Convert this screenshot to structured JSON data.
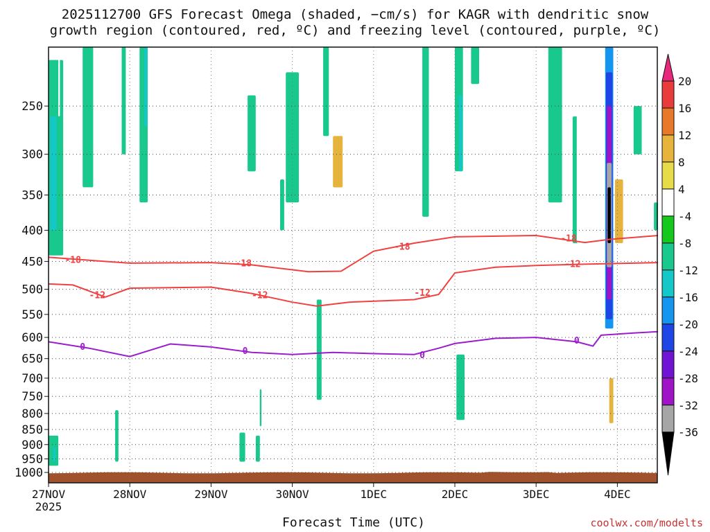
{
  "title_line1": "2025112700 GFS Forecast Omega (shaded, −cm/s) for KAGR with dendritic snow",
  "title_line2": "growth region (contoured, red, ºC) and freezing level (contoured, purple, ºC)",
  "credit": "coolwx.com/modelts",
  "chart_data": {
    "type": "heatmap",
    "title": "2025112700 GFS Forecast Omega (shaded, −cm/s) for KAGR with dendritic snow growth region (contoured, red, ºC) and freezing level (contoured, purple, ºC)",
    "xlabel": "Forecast Time (UTC)",
    "ylabel": "",
    "y_scale": "log-pressure (hPa)",
    "ylim": [
      1000,
      200
    ],
    "xlim_days": [
      "27NOV 00Z",
      "4DEC 12Z"
    ],
    "x_ticks": [
      {
        "label": "27NOV",
        "sub": "2025",
        "day": 0
      },
      {
        "label": "28NOV",
        "day": 1
      },
      {
        "label": "29NOV",
        "day": 2
      },
      {
        "label": "30NOV",
        "day": 3
      },
      {
        "label": "1DEC",
        "day": 4
      },
      {
        "label": "2DEC",
        "day": 5
      },
      {
        "label": "3DEC",
        "day": 6
      },
      {
        "label": "4DEC",
        "day": 7
      }
    ],
    "y_ticks": [
      250,
      300,
      350,
      400,
      450,
      500,
      550,
      600,
      650,
      700,
      750,
      800,
      850,
      900,
      950,
      1000
    ],
    "grid": true,
    "colorbar": {
      "labels": [
        "20",
        "16",
        "12",
        "8",
        "4",
        "-4",
        "-8",
        "-12",
        "-16",
        "-20",
        "-24",
        "-28",
        "-32",
        "-36"
      ],
      "colors": [
        "#e8287a",
        "#e83c3c",
        "#e8782a",
        "#e6b43c",
        "#e6dc4a",
        "#ffffff",
        "#16c81c",
        "#18c88c",
        "#14c8c8",
        "#1496f0",
        "#1e46e6",
        "#6e14d2",
        "#a014c8",
        "#a6a6a6",
        "#000000"
      ]
    },
    "contours": {
      "snow_growth": {
        "color": "#f04040",
        "levels": [
          {
            "level": "-18",
            "points": [
              [
                0.0,
                443
              ],
              [
                0.5,
                448
              ],
              [
                1.0,
                453
              ],
              [
                2.0,
                452
              ],
              [
                2.5,
                456
              ],
              [
                3.2,
                468
              ],
              [
                3.6,
                467
              ],
              [
                4.0,
                433
              ],
              [
                4.5,
                420
              ],
              [
                5.0,
                410
              ],
              [
                6.0,
                408
              ],
              [
                6.6,
                419
              ],
              [
                6.9,
                414
              ],
              [
                7.5,
                408
              ]
            ]
          },
          {
            "level": "-12",
            "points": [
              [
                0.0,
                490
              ],
              [
                0.3,
                492
              ],
              [
                0.7,
                515
              ],
              [
                1.0,
                498
              ],
              [
                2.0,
                496
              ],
              [
                2.5,
                508
              ],
              [
                3.0,
                525
              ],
              [
                3.3,
                533
              ],
              [
                3.7,
                525
              ],
              [
                4.5,
                520
              ],
              [
                4.8,
                510
              ],
              [
                5.0,
                470
              ],
              [
                5.5,
                460
              ],
              [
                6.0,
                457
              ],
              [
                6.5,
                455
              ],
              [
                7.5,
                452
              ]
            ]
          }
        ]
      },
      "freezing_level": {
        "color": "#9a1ccc",
        "levels": [
          {
            "level": "0",
            "points": [
              [
                0.0,
                610
              ],
              [
                0.5,
                625
              ],
              [
                1.0,
                645
              ],
              [
                1.5,
                615
              ],
              [
                2.0,
                622
              ],
              [
                2.5,
                635
              ],
              [
                3.0,
                640
              ],
              [
                3.5,
                635
              ],
              [
                4.0,
                638
              ],
              [
                4.5,
                640
              ],
              [
                4.8,
                625
              ],
              [
                5.0,
                614
              ],
              [
                5.5,
                602
              ],
              [
                6.0,
                600
              ],
              [
                6.5,
                610
              ],
              [
                6.7,
                620
              ],
              [
                6.8,
                595
              ],
              [
                7.2,
                590
              ],
              [
                7.5,
                587
              ]
            ]
          }
        ]
      }
    },
    "omega_features": [
      {
        "day_start": 0.0,
        "day_end": 0.18,
        "p_top": 210,
        "p_bottom": 440,
        "value": -8
      },
      {
        "day_start": 0.02,
        "day_end": 0.1,
        "p_top": 260,
        "p_bottom": 400,
        "value": -12
      },
      {
        "day_start": 0.0,
        "day_end": 0.12,
        "p_top": 870,
        "p_bottom": 975,
        "value": -8
      },
      {
        "day_start": 0.06,
        "day_end": 0.09,
        "p_top": 910,
        "p_bottom": 960,
        "value": -12
      },
      {
        "day_start": 0.12,
        "day_end": 0.14,
        "p_top": 200,
        "p_bottom": 260,
        "value": 4
      },
      {
        "day_start": 0.42,
        "day_end": 0.55,
        "p_top": 200,
        "p_bottom": 340,
        "value": -8
      },
      {
        "day_start": 0.85,
        "day_end": 0.9,
        "p_top": 480,
        "p_bottom": 640,
        "value": 4
      },
      {
        "day_start": 0.92,
        "day_end": 0.96,
        "p_top": 400,
        "p_bottom": 640,
        "value": 4
      },
      {
        "day_start": 0.82,
        "day_end": 0.86,
        "p_top": 790,
        "p_bottom": 960,
        "value": -8
      },
      {
        "day_start": 0.55,
        "day_end": 0.65,
        "p_top": 200,
        "p_bottom": 380,
        "value": 4
      },
      {
        "day_start": 0.9,
        "day_end": 0.95,
        "p_top": 200,
        "p_bottom": 300,
        "value": -8
      },
      {
        "day_start": 1.12,
        "day_end": 1.22,
        "p_top": 200,
        "p_bottom": 360,
        "value": -8
      },
      {
        "day_start": 1.18,
        "day_end": 1.22,
        "p_top": 200,
        "p_bottom": 270,
        "value": -12
      },
      {
        "day_start": 1.3,
        "day_end": 1.5,
        "p_top": 200,
        "p_bottom": 300,
        "value": 4
      },
      {
        "day_start": 1.72,
        "day_end": 1.76,
        "p_top": 420,
        "p_bottom": 560,
        "value": 4
      },
      {
        "day_start": 2.45,
        "day_end": 2.55,
        "p_top": 240,
        "p_bottom": 320,
        "value": -8
      },
      {
        "day_start": 2.65,
        "day_end": 2.78,
        "p_top": 200,
        "p_bottom": 330,
        "value": 4
      },
      {
        "day_start": 2.92,
        "day_end": 3.08,
        "p_top": 220,
        "p_bottom": 360,
        "value": -8
      },
      {
        "day_start": 2.85,
        "day_end": 2.9,
        "p_top": 330,
        "p_bottom": 400,
        "value": -8
      },
      {
        "day_start": 2.35,
        "day_end": 2.42,
        "p_top": 860,
        "p_bottom": 960,
        "value": -8
      },
      {
        "day_start": 2.45,
        "day_end": 2.5,
        "p_top": 740,
        "p_bottom": 880,
        "value": 4
      },
      {
        "day_start": 2.6,
        "day_end": 2.62,
        "p_top": 730,
        "p_bottom": 840,
        "value": -8
      },
      {
        "day_start": 2.55,
        "day_end": 2.6,
        "p_top": 870,
        "p_bottom": 960,
        "value": -8
      },
      {
        "day_start": 3.2,
        "day_end": 3.28,
        "p_top": 400,
        "p_bottom": 460,
        "value": 4
      },
      {
        "day_start": 3.45,
        "day_end": 3.62,
        "p_top": 200,
        "p_bottom": 470,
        "value": 4
      },
      {
        "day_start": 3.5,
        "day_end": 3.62,
        "p_top": 280,
        "p_bottom": 340,
        "value": 12
      },
      {
        "day_start": 3.5,
        "day_end": 3.6,
        "p_top": 400,
        "p_bottom": 560,
        "value": 4
      },
      {
        "day_start": 3.62,
        "day_end": 3.78,
        "p_top": 200,
        "p_bottom": 340,
        "value": 4
      },
      {
        "day_start": 3.38,
        "day_end": 3.45,
        "p_top": 200,
        "p_bottom": 280,
        "value": -8
      },
      {
        "day_start": 3.3,
        "day_end": 3.36,
        "p_top": 520,
        "p_bottom": 760,
        "value": -8
      },
      {
        "day_start": 3.9,
        "day_end": 4.0,
        "p_top": 200,
        "p_bottom": 360,
        "value": 4
      },
      {
        "day_start": 4.05,
        "day_end": 4.15,
        "p_top": 200,
        "p_bottom": 260,
        "value": 4
      },
      {
        "day_start": 4.25,
        "day_end": 4.4,
        "p_top": 200,
        "p_bottom": 280,
        "value": 4
      },
      {
        "day_start": 4.55,
        "day_end": 4.65,
        "p_top": 200,
        "p_bottom": 330,
        "value": 4
      },
      {
        "day_start": 4.6,
        "day_end": 4.68,
        "p_top": 200,
        "p_bottom": 380,
        "value": -8
      },
      {
        "day_start": 4.75,
        "day_end": 4.8,
        "p_top": 200,
        "p_bottom": 260,
        "value": 4
      },
      {
        "day_start": 4.57,
        "day_end": 4.62,
        "p_top": 700,
        "p_bottom": 860,
        "value": 4
      },
      {
        "day_start": 4.95,
        "day_end": 5.08,
        "p_top": 200,
        "p_bottom": 360,
        "value": 4
      },
      {
        "day_start": 5.0,
        "day_end": 5.1,
        "p_top": 200,
        "p_bottom": 320,
        "value": -8
      },
      {
        "day_start": 5.05,
        "day_end": 5.09,
        "p_top": 240,
        "p_bottom": 320,
        "value": -12
      },
      {
        "day_start": 5.02,
        "day_end": 5.12,
        "p_top": 640,
        "p_bottom": 820,
        "value": -8
      },
      {
        "day_start": 5.15,
        "day_end": 5.25,
        "p_top": 200,
        "p_bottom": 300,
        "value": 4
      },
      {
        "day_start": 5.2,
        "day_end": 5.3,
        "p_top": 200,
        "p_bottom": 230,
        "value": -8
      },
      {
        "day_start": 5.3,
        "day_end": 5.35,
        "p_top": 200,
        "p_bottom": 250,
        "value": 4
      },
      {
        "day_start": 5.6,
        "day_end": 5.66,
        "p_top": 200,
        "p_bottom": 270,
        "value": 4
      },
      {
        "day_start": 5.7,
        "day_end": 5.78,
        "p_top": 200,
        "p_bottom": 320,
        "value": 4
      },
      {
        "day_start": 5.9,
        "day_end": 6.0,
        "p_top": 200,
        "p_bottom": 330,
        "value": 4
      },
      {
        "day_start": 6.15,
        "day_end": 6.32,
        "p_top": 200,
        "p_bottom": 360,
        "value": -8
      },
      {
        "day_start": 6.32,
        "day_end": 6.5,
        "p_top": 200,
        "p_bottom": 380,
        "value": 4
      },
      {
        "day_start": 6.45,
        "day_end": 6.55,
        "p_top": 260,
        "p_bottom": 420,
        "value": -8
      },
      {
        "day_start": 6.5,
        "day_end": 6.6,
        "p_top": 200,
        "p_bottom": 420,
        "value": 4
      },
      {
        "day_start": 6.85,
        "day_end": 6.95,
        "p_top": 200,
        "p_bottom": 580,
        "value": -16
      },
      {
        "day_start": 6.86,
        "day_end": 6.94,
        "p_top": 220,
        "p_bottom": 560,
        "value": -20
      },
      {
        "day_start": 6.87,
        "day_end": 6.93,
        "p_top": 250,
        "p_bottom": 520,
        "value": -28
      },
      {
        "day_start": 6.87,
        "day_end": 6.93,
        "p_top": 310,
        "p_bottom": 460,
        "value": -32
      },
      {
        "day_start": 6.88,
        "day_end": 6.92,
        "p_top": 340,
        "p_bottom": 420,
        "value": -36
      },
      {
        "day_start": 6.95,
        "day_end": 7.1,
        "p_top": 200,
        "p_bottom": 530,
        "value": 4
      },
      {
        "day_start": 6.97,
        "day_end": 7.07,
        "p_top": 330,
        "p_bottom": 420,
        "value": 12
      },
      {
        "day_start": 7.1,
        "day_end": 7.25,
        "p_top": 200,
        "p_bottom": 280,
        "value": 4
      },
      {
        "day_start": 7.2,
        "day_end": 7.3,
        "p_top": 250,
        "p_bottom": 300,
        "value": -8
      },
      {
        "day_start": 7.45,
        "day_end": 7.5,
        "p_top": 360,
        "p_bottom": 400,
        "value": -8
      },
      {
        "day_start": 6.88,
        "day_end": 6.98,
        "p_top": 680,
        "p_bottom": 890,
        "value": 4
      },
      {
        "day_start": 6.9,
        "day_end": 6.95,
        "p_top": 700,
        "p_bottom": 830,
        "value": 12
      }
    ],
    "ground_color": "#a0522d"
  }
}
